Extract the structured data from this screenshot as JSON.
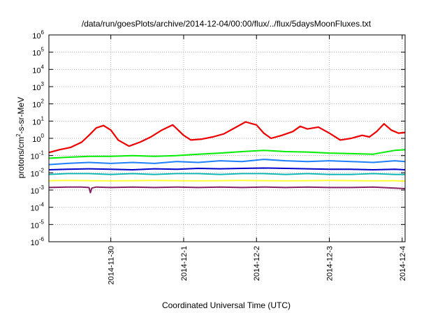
{
  "chart_data": {
    "type": "line",
    "title": "/data/run/goesPlots/archive/2014-12-04/00:00/flux/../flux/5daysMoonFluxes.txt",
    "xlabel": "Coordinated Universal Time (UTC)",
    "ylabel_main": "protons/cm",
    "ylabel_sup": "2",
    "ylabel_rest": "-s-sr-MeV",
    "yscale": "log",
    "ylim": [
      1e-06,
      1000000.0
    ],
    "xlim": [
      -0.85,
      4.04
    ],
    "grid": true,
    "y_ticks": [
      {
        "value": -6,
        "base": "10",
        "exp": "-6"
      },
      {
        "value": -5,
        "base": "10",
        "exp": "-5"
      },
      {
        "value": -4,
        "base": "10",
        "exp": "-4"
      },
      {
        "value": -3,
        "base": "10",
        "exp": "-3"
      },
      {
        "value": -2,
        "base": "10",
        "exp": "-2"
      },
      {
        "value": -1,
        "base": "10",
        "exp": "-1"
      },
      {
        "value": 0,
        "base": "10",
        "exp": "0"
      },
      {
        "value": 1,
        "base": "10",
        "exp": "1"
      },
      {
        "value": 2,
        "base": "10",
        "exp": "2"
      },
      {
        "value": 3,
        "base": "10",
        "exp": "3"
      },
      {
        "value": 4,
        "base": "10",
        "exp": "4"
      },
      {
        "value": 5,
        "base": "10",
        "exp": "5"
      },
      {
        "value": 6,
        "base": "10",
        "exp": "6"
      }
    ],
    "x_ticks": [
      {
        "value": 0,
        "label": "2014-11-30"
      },
      {
        "value": 1,
        "label": "2014-12-1"
      },
      {
        "value": 2,
        "label": "2014-12-2"
      },
      {
        "value": 3,
        "label": "2014-12-3"
      },
      {
        "value": 4,
        "label": "2014-12-4"
      }
    ],
    "series": [
      {
        "color": "#ee0000",
        "width": 2.2,
        "x": [
          -0.85,
          -0.7,
          -0.55,
          -0.4,
          -0.3,
          -0.2,
          -0.1,
          0,
          0.1,
          0.25,
          0.4,
          0.55,
          0.7,
          0.85,
          1.0,
          1.1,
          1.25,
          1.4,
          1.55,
          1.7,
          1.85,
          2.0,
          2.1,
          2.2,
          2.35,
          2.5,
          2.6,
          2.7,
          2.85,
          3.0,
          3.15,
          3.3,
          3.45,
          3.55,
          3.65,
          3.75,
          3.85,
          3.95,
          4.04
        ],
        "y": [
          0.15,
          0.22,
          0.3,
          0.6,
          1.5,
          4.0,
          5.5,
          3.0,
          0.8,
          0.35,
          0.6,
          1.2,
          3.0,
          6.0,
          1.5,
          0.8,
          0.9,
          1.2,
          1.8,
          4.0,
          9.0,
          6.0,
          2.0,
          1.0,
          1.5,
          2.5,
          5.0,
          3.5,
          4.5,
          2.0,
          0.8,
          1.0,
          1.5,
          1.2,
          2.5,
          7.0,
          3.0,
          2.0,
          2.2
        ]
      },
      {
        "color": "#00ee00",
        "width": 2.0,
        "x": [
          -0.85,
          -0.6,
          -0.3,
          0,
          0.3,
          0.6,
          0.9,
          1.2,
          1.5,
          1.8,
          2.1,
          2.4,
          2.7,
          3.0,
          3.3,
          3.6,
          3.9,
          4.04
        ],
        "y": [
          0.07,
          0.08,
          0.09,
          0.09,
          0.1,
          0.09,
          0.1,
          0.12,
          0.14,
          0.17,
          0.2,
          0.17,
          0.16,
          0.14,
          0.13,
          0.12,
          0.2,
          0.22
        ]
      },
      {
        "color": "#1e7fff",
        "width": 2.0,
        "x": [
          -0.85,
          -0.6,
          -0.3,
          0,
          0.3,
          0.6,
          0.9,
          1.2,
          1.5,
          1.8,
          2.1,
          2.4,
          2.7,
          3.0,
          3.3,
          3.6,
          3.9,
          4.04
        ],
        "y": [
          0.03,
          0.035,
          0.04,
          0.035,
          0.04,
          0.035,
          0.045,
          0.04,
          0.05,
          0.045,
          0.06,
          0.05,
          0.045,
          0.05,
          0.045,
          0.04,
          0.05,
          0.045
        ]
      },
      {
        "color": "#0000cc",
        "width": 2.0,
        "x": [
          -0.85,
          -0.6,
          -0.3,
          0,
          0.3,
          0.6,
          0.9,
          1.2,
          1.5,
          1.8,
          2.1,
          2.4,
          2.7,
          3.0,
          3.3,
          3.6,
          3.9,
          4.04
        ],
        "y": [
          0.015,
          0.016,
          0.017,
          0.016,
          0.015,
          0.017,
          0.016,
          0.018,
          0.017,
          0.018,
          0.019,
          0.018,
          0.017,
          0.016,
          0.016,
          0.015,
          0.016,
          0.015
        ]
      },
      {
        "color": "#00b4b4",
        "width": 1.8,
        "x": [
          -0.85,
          -0.6,
          -0.3,
          0,
          0.3,
          0.6,
          0.9,
          1.2,
          1.5,
          1.8,
          2.1,
          2.4,
          2.7,
          3.0,
          3.3,
          3.6,
          3.9,
          4.04
        ],
        "y": [
          0.008,
          0.009,
          0.009,
          0.008,
          0.009,
          0.008,
          0.009,
          0.009,
          0.008,
          0.009,
          0.009,
          0.008,
          0.009,
          0.008,
          0.008,
          0.009,
          0.008,
          0.008
        ]
      },
      {
        "color": "#ffff33",
        "width": 2.0,
        "x": [
          -0.85,
          -0.6,
          -0.3,
          0,
          0.3,
          0.6,
          0.9,
          1.2,
          1.5,
          1.8,
          2.1,
          2.4,
          2.7,
          3.0,
          3.3,
          3.6,
          3.9,
          4.04
        ],
        "y": [
          0.0035,
          0.0036,
          0.0035,
          0.0034,
          0.0035,
          0.0036,
          0.0035,
          0.0034,
          0.0035,
          0.0036,
          0.0035,
          0.0034,
          0.0035,
          0.0036,
          0.0035,
          0.0034,
          0.0035,
          0.0033
        ]
      },
      {
        "color": "#882266",
        "width": 2.0,
        "x": [
          -0.85,
          -0.6,
          -0.4,
          -0.3,
          -0.28,
          -0.26,
          -0.2,
          0,
          0.3,
          0.6,
          0.9,
          1.2,
          1.5,
          1.8,
          2.1,
          2.4,
          2.7,
          3.0,
          3.3,
          3.6,
          3.9,
          4.04
        ],
        "y": [
          0.0014,
          0.0015,
          0.0015,
          0.0014,
          0.0007,
          0.0013,
          0.0015,
          0.0014,
          0.0015,
          0.0014,
          0.0015,
          0.0014,
          0.0015,
          0.0014,
          0.0015,
          0.0014,
          0.0015,
          0.0014,
          0.0014,
          0.0015,
          0.0013,
          0.0012
        ]
      }
    ]
  }
}
